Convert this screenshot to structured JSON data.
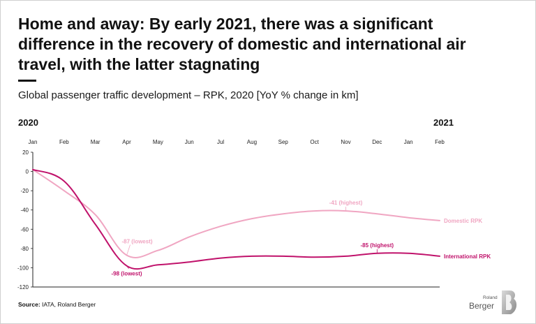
{
  "header": {
    "title": "Home and away: By early 2021, there was a significant difference in the recovery of domestic and international air travel, with the latter stagnating",
    "subtitle": "Global passenger traffic development – RPK, 2020 [YoY % change in km]"
  },
  "years": {
    "start": "2020",
    "end": "2021"
  },
  "footer": {
    "source_label": "Source:",
    "source_text": "IATA, Roland Berger"
  },
  "logo": {
    "line1": "Roland",
    "line2": "Berger"
  },
  "colors": {
    "international": "#c0126b",
    "domestic": "#f0a6c2",
    "axis": "#222222",
    "text": "#1a1a1a"
  },
  "chart_data": {
    "type": "line",
    "title": "Global passenger traffic development – RPK, 2020 [YoY % change in km]",
    "xlabel": "",
    "ylabel": "",
    "categories": [
      "Jan",
      "Feb",
      "Mar",
      "Apr",
      "May",
      "Jun",
      "Jul",
      "Aug",
      "Sep",
      "Oct",
      "Nov",
      "Dec",
      "Jan",
      "Feb"
    ],
    "ylim": [
      -120,
      20
    ],
    "yticks": [
      20,
      0,
      -20,
      -40,
      -60,
      -80,
      -100,
      -120
    ],
    "series": [
      {
        "name": "Domestic RPK",
        "color": "#f0a6c2",
        "values": [
          2,
          -20,
          -45,
          -87,
          -82,
          -68,
          -57,
          -49,
          -44,
          -41,
          -41,
          -44,
          -48,
          -51
        ]
      },
      {
        "name": "International RPK",
        "color": "#c0126b",
        "values": [
          2,
          -10,
          -55,
          -98,
          -97,
          -94,
          -90,
          -88,
          -88,
          -89,
          -88,
          -85,
          -85,
          -88
        ]
      }
    ],
    "annotations": [
      {
        "series": "Domestic RPK",
        "label": "-87 (lowest)",
        "x": "Apr",
        "y": -87
      },
      {
        "series": "Domestic RPK",
        "label": "-41 (highest)",
        "x": "Nov",
        "y": -41
      },
      {
        "series": "International RPK",
        "label": "-98 (lowest)",
        "x": "Apr",
        "y": -98
      },
      {
        "series": "International RPK",
        "label": "-85 (highest)",
        "x": "Dec",
        "y": -85
      }
    ]
  }
}
